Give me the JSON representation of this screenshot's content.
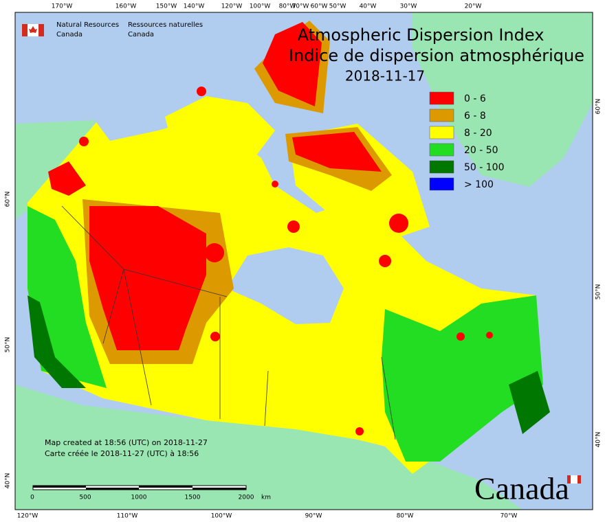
{
  "header": {
    "title": "Atmospheric Dispersion Index",
    "title_fr": "Indice de dispersion atmosphérique",
    "date": "2018-11-17"
  },
  "agency": {
    "en": [
      "Natural Resources",
      "Canada"
    ],
    "fr": [
      "Ressources naturelles",
      "Canada"
    ]
  },
  "legend": [
    {
      "label": "0 - 6",
      "color": "#ff0000"
    },
    {
      "label": "6 - 8",
      "color": "#dd9900"
    },
    {
      "label": "8 - 20",
      "color": "#ffff00"
    },
    {
      "label": "20 - 50",
      "color": "#22dd22"
    },
    {
      "label": "50 - 100",
      "color": "#007700"
    },
    {
      "label": "> 100",
      "color": "#0000ff"
    }
  ],
  "graticule": {
    "top": [
      "170°W",
      "160°W",
      "150°W",
      "140°W",
      "120°W",
      "100°W",
      "80°W",
      "70°W",
      "60°W",
      "50°W",
      "40°W",
      "30°W",
      "20°W"
    ],
    "bottom": [
      "120°W",
      "110°W",
      "100°W",
      "90°W",
      "80°W",
      "70°W"
    ],
    "left": [
      "60°N",
      "50°N",
      "40°N"
    ],
    "right": [
      "60°N",
      "50°N",
      "40°N"
    ]
  },
  "scale": {
    "ticks": [
      "0",
      "500",
      "1000",
      "1500",
      "2000"
    ],
    "unit": "km"
  },
  "footer": [
    "Map created at 18:56 (UTC) on 2018-11-27",
    "Carte créée le 2018-11-27 (UTC) à 18:56"
  ],
  "wordmark": "Canada"
}
